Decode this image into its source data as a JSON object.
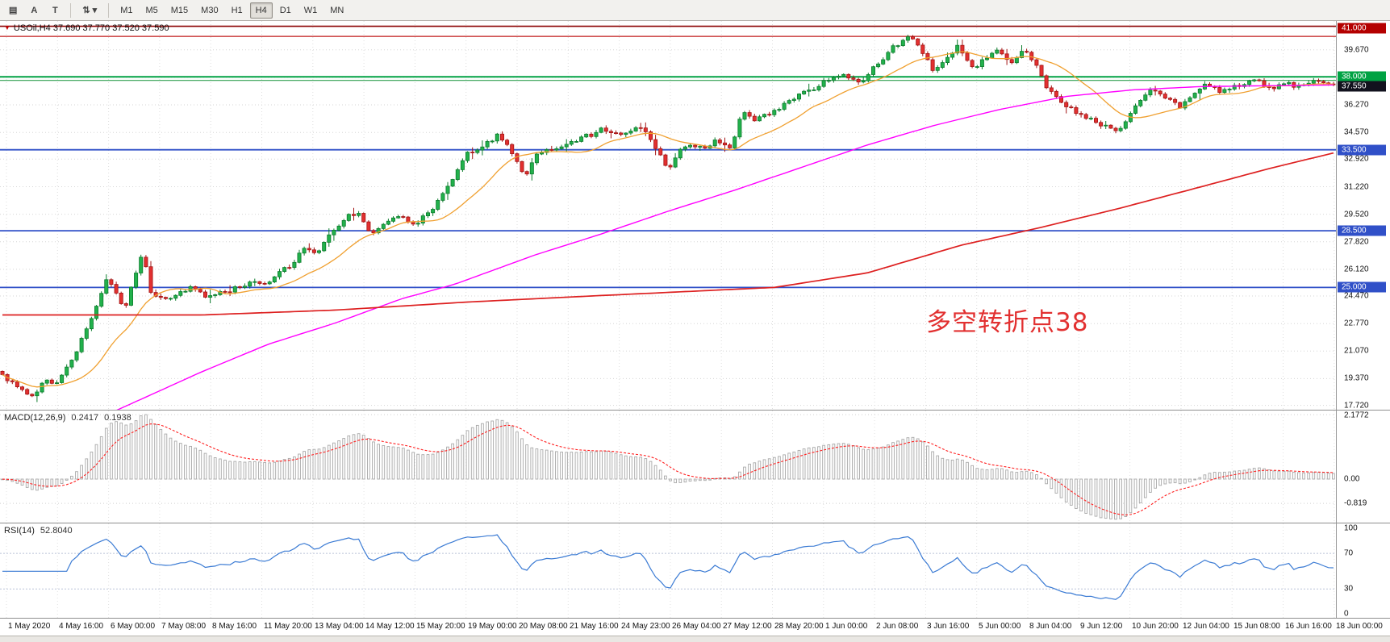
{
  "toolbar": {
    "tools": [
      {
        "name": "chart-mode-icon",
        "glyph": "▤"
      },
      {
        "name": "arrow-tool-button",
        "glyph": "A"
      },
      {
        "name": "text-tool-button",
        "glyph": "T"
      },
      {
        "sep": true
      },
      {
        "name": "draw-tools-button",
        "glyph": "⇅ ▾"
      },
      {
        "sep": true
      }
    ],
    "timeframes": [
      "M1",
      "M5",
      "M15",
      "M30",
      "H1",
      "H4",
      "D1",
      "W1",
      "MN"
    ],
    "active_timeframe": "H4"
  },
  "header": {
    "symbol_line": "USOil,H4 37.690 37.770 37.520 37.590"
  },
  "chart_data": {
    "type": "candlestick",
    "symbol": "USOil",
    "timeframe": "H4",
    "ohlc_last": {
      "open": 37.69,
      "high": 37.77,
      "low": 37.52,
      "close": 37.59
    },
    "bars": 270,
    "noise": 0.3,
    "price_range": [
      17.45,
      41.45
    ],
    "y_axis_ticks": [
      "39.670",
      "36.270",
      "34.570",
      "32.920",
      "31.220",
      "29.520",
      "27.820",
      "26.120",
      "24.470",
      "22.770",
      "21.070",
      "19.370",
      "17.720"
    ],
    "x_axis_labels": [
      "1 May 2020",
      "4 May 16:00",
      "6 May 00:00",
      "7 May 08:00",
      "8 May 16:00",
      "11 May 20:00",
      "13 May 04:00",
      "14 May 12:00",
      "15 May 20:00",
      "19 May 00:00",
      "20 May 08:00",
      "21 May 16:00",
      "24 May 23:00",
      "26 May 04:00",
      "27 May 12:00",
      "28 May 20:00",
      "1 Jun 00:00",
      "2 Jun 08:00",
      "3 Jun 16:00",
      "5 Jun 00:00",
      "8 Jun 04:00",
      "9 Jun 12:00",
      "10 Jun 20:00",
      "12 Jun 04:00",
      "15 Jun 08:00",
      "16 Jun 16:00",
      "18 Jun 00:00"
    ],
    "price_keyframes": [
      [
        0,
        19.6
      ],
      [
        0.01,
        19.0
      ],
      [
        0.022,
        18.2
      ],
      [
        0.032,
        19.4
      ],
      [
        0.04,
        19.1
      ],
      [
        0.055,
        21.0
      ],
      [
        0.068,
        23.2
      ],
      [
        0.078,
        25.6
      ],
      [
        0.085,
        24.6
      ],
      [
        0.092,
        23.6
      ],
      [
        0.1,
        25.8
      ],
      [
        0.106,
        27.2
      ],
      [
        0.112,
        24.6
      ],
      [
        0.125,
        24.2
      ],
      [
        0.14,
        25.0
      ],
      [
        0.155,
        24.4
      ],
      [
        0.17,
        24.8
      ],
      [
        0.185,
        25.2
      ],
      [
        0.2,
        25.4
      ],
      [
        0.215,
        26.3
      ],
      [
        0.228,
        27.4
      ],
      [
        0.236,
        27.0
      ],
      [
        0.245,
        28.2
      ],
      [
        0.258,
        29.3
      ],
      [
        0.268,
        29.6
      ],
      [
        0.276,
        28.4
      ],
      [
        0.29,
        29.0
      ],
      [
        0.3,
        29.4
      ],
      [
        0.31,
        28.8
      ],
      [
        0.32,
        29.6
      ],
      [
        0.335,
        31.2
      ],
      [
        0.348,
        33.2
      ],
      [
        0.36,
        33.6
      ],
      [
        0.372,
        34.4
      ],
      [
        0.38,
        33.8
      ],
      [
        0.393,
        31.9
      ],
      [
        0.403,
        33.4
      ],
      [
        0.42,
        33.6
      ],
      [
        0.435,
        34.2
      ],
      [
        0.452,
        34.8
      ],
      [
        0.468,
        34.4
      ],
      [
        0.48,
        34.9
      ],
      [
        0.492,
        33.4
      ],
      [
        0.5,
        32.3
      ],
      [
        0.512,
        33.8
      ],
      [
        0.525,
        33.6
      ],
      [
        0.538,
        34.1
      ],
      [
        0.548,
        33.6
      ],
      [
        0.556,
        36.0
      ],
      [
        0.565,
        35.3
      ],
      [
        0.578,
        35.8
      ],
      [
        0.592,
        36.5
      ],
      [
        0.605,
        37.1
      ],
      [
        0.618,
        37.7
      ],
      [
        0.63,
        38.1
      ],
      [
        0.645,
        37.6
      ],
      [
        0.658,
        38.9
      ],
      [
        0.67,
        39.9
      ],
      [
        0.682,
        40.6
      ],
      [
        0.69,
        39.6
      ],
      [
        0.7,
        38.4
      ],
      [
        0.71,
        39.2
      ],
      [
        0.718,
        39.9
      ],
      [
        0.728,
        38.6
      ],
      [
        0.738,
        39.0
      ],
      [
        0.748,
        39.6
      ],
      [
        0.758,
        38.8
      ],
      [
        0.768,
        39.8
      ],
      [
        0.775,
        38.9
      ],
      [
        0.785,
        37.3
      ],
      [
        0.798,
        36.3
      ],
      [
        0.812,
        35.6
      ],
      [
        0.825,
        35.0
      ],
      [
        0.838,
        34.7
      ],
      [
        0.845,
        35.4
      ],
      [
        0.855,
        36.5
      ],
      [
        0.865,
        37.3
      ],
      [
        0.875,
        36.6
      ],
      [
        0.885,
        36.1
      ],
      [
        0.895,
        37.0
      ],
      [
        0.905,
        37.6
      ],
      [
        0.915,
        37.1
      ],
      [
        0.928,
        37.5
      ],
      [
        0.94,
        37.8
      ],
      [
        0.952,
        37.3
      ],
      [
        0.962,
        37.6
      ],
      [
        0.972,
        37.4
      ],
      [
        0.982,
        37.7
      ],
      [
        1,
        37.59
      ]
    ],
    "ma_fast_period": 16,
    "ma_mid_keyframes": [
      [
        0,
        16.5
      ],
      [
        0.08,
        17.2
      ],
      [
        0.15,
        19.8
      ],
      [
        0.2,
        21.5
      ],
      [
        0.25,
        22.8
      ],
      [
        0.3,
        24.3
      ],
      [
        0.34,
        25.2
      ],
      [
        0.4,
        27.0
      ],
      [
        0.45,
        28.3
      ],
      [
        0.5,
        29.7
      ],
      [
        0.55,
        31.0
      ],
      [
        0.6,
        32.4
      ],
      [
        0.65,
        33.8
      ],
      [
        0.7,
        35.0
      ],
      [
        0.75,
        36.0
      ],
      [
        0.8,
        36.8
      ],
      [
        0.85,
        37.2
      ],
      [
        0.9,
        37.4
      ],
      [
        1,
        37.5
      ]
    ],
    "ma_slow_keyframes": [
      [
        0,
        23.3
      ],
      [
        0.15,
        23.3
      ],
      [
        0.25,
        23.6
      ],
      [
        0.35,
        24.1
      ],
      [
        0.45,
        24.5
      ],
      [
        0.58,
        25.0
      ],
      [
        0.65,
        25.9
      ],
      [
        0.72,
        27.6
      ],
      [
        0.78,
        28.7
      ],
      [
        0.84,
        29.9
      ],
      [
        0.9,
        31.2
      ],
      [
        0.95,
        32.3
      ],
      [
        1,
        33.3
      ]
    ],
    "levels": [
      {
        "price": 41.12,
        "color": "#8b0000",
        "width": 1.6
      },
      {
        "price": 40.5,
        "color": "#c01818",
        "width": 1.2
      },
      {
        "price": 38.0,
        "color": "#00a243",
        "width": 2
      },
      {
        "price": 37.78,
        "color": "#2f9e4f",
        "width": 1.2
      },
      {
        "price": 33.5,
        "color": "#3050c8",
        "width": 1.8
      },
      {
        "price": 28.5,
        "color": "#3050c8",
        "width": 1.8
      },
      {
        "price": 25.0,
        "color": "#3050c8",
        "width": 1.8
      }
    ],
    "right_badges": [
      {
        "text": "41.000",
        "bg": "#b40000",
        "price": 41.0
      },
      {
        "text": "38.000",
        "bg": "#00a243",
        "price": 38.0
      },
      {
        "text": "37.550",
        "bg": "#12121e",
        "price": 37.42
      },
      {
        "text": "33.500",
        "bg": "#3050c8",
        "price": 33.5
      },
      {
        "text": "28.500",
        "bg": "#3050c8",
        "price": 28.5
      },
      {
        "text": "25.000",
        "bg": "#3050c8",
        "price": 25.0
      }
    ],
    "indicators": {
      "macd": {
        "label": "MACD(12,26,9)",
        "display_main": "0.2417",
        "display_signal": "0.1938",
        "axis_labels": [
          "2.1772",
          "0.00",
          "-0.819"
        ],
        "scale_max": 2.1772
      },
      "rsi": {
        "label": "RSI(14)",
        "display_value": "52.8040",
        "axis_labels": [
          "100",
          "70",
          "30",
          "0"
        ],
        "levels": [
          70,
          30
        ]
      }
    },
    "annotation": {
      "text": "多空转折点38",
      "color": "#e23030"
    },
    "colors": {
      "bull": "#22b14c",
      "bull_edge": "#0c7c2c",
      "bear": "#e23030",
      "bear_edge": "#a31515",
      "ma_fast": "#f0a030",
      "ma_mid": "#ff00ff",
      "ma_slow": "#dd2020",
      "macd_bar": "#a8a8a8",
      "macd_signal": "#ff2020",
      "rsi": "#3b7bd4",
      "grid": "#d6d6d6"
    }
  }
}
